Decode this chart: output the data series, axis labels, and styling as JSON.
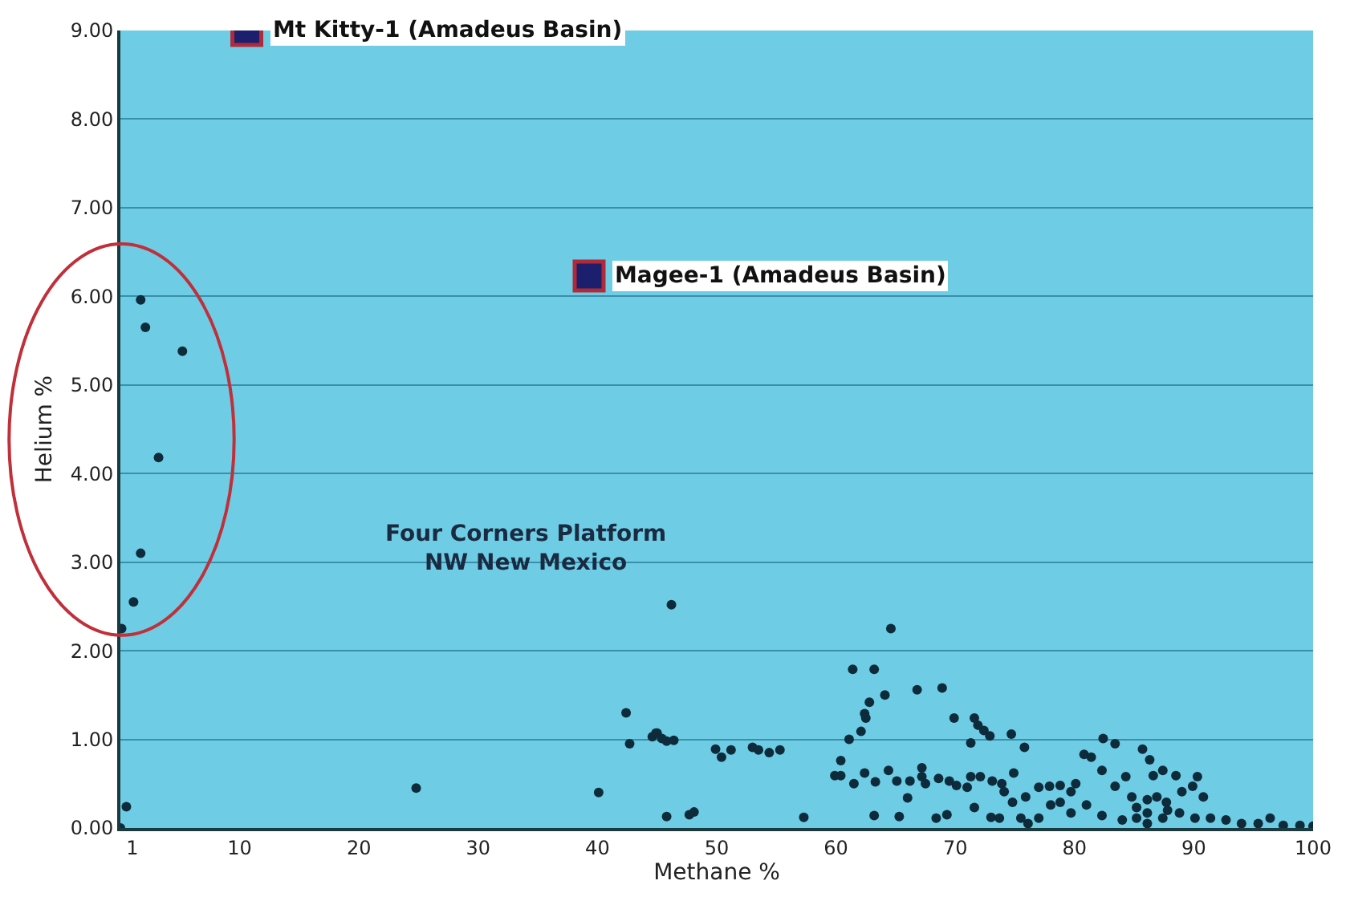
{
  "chart_data": {
    "type": "scatter",
    "xlabel": "Methane %",
    "ylabel": "Helium %",
    "xlim": [
      0,
      100
    ],
    "xticks": [
      {
        "value": 1,
        "label": "1"
      },
      10,
      20,
      30,
      40,
      50,
      60,
      70,
      80,
      90,
      100
    ],
    "ylim": [
      0,
      9
    ],
    "yticks": [
      {
        "value": 0,
        "label": "0.00"
      },
      {
        "value": 1,
        "label": "1.00"
      },
      {
        "value": 2,
        "label": "2.00"
      },
      {
        "value": 3,
        "label": "3.00"
      },
      {
        "value": 4,
        "label": "4.00"
      },
      {
        "value": 5,
        "label": "5.00"
      },
      {
        "value": 6,
        "label": "6.00"
      },
      {
        "value": 7,
        "label": "7.00"
      },
      {
        "value": 8,
        "label": "8.00"
      },
      {
        "value": 9,
        "label": "9.00"
      }
    ],
    "grid": "y",
    "series": [
      {
        "color": "#0d2b3a",
        "marker": "circle",
        "x": [
          0.5,
          0,
          24.8,
          40.1,
          42.4,
          42.7,
          44.6,
          45.0,
          45.8,
          45.8,
          46.2,
          64.6,
          61.4,
          63.2,
          64.1,
          66.8,
          68.9,
          62.8,
          62.4,
          62.5,
          62.1,
          61.1,
          69.9,
          71.6,
          71.9,
          72.4,
          72.9,
          74.7,
          71.3,
          75.8,
          44.9,
          45.4,
          46.4,
          49.9,
          50.4,
          51.2,
          53.0,
          53.5,
          54.4,
          55.3,
          47.7,
          48.1,
          57.3,
          60.4,
          59.9,
          60.4,
          61.5,
          62.4,
          63.3,
          64.4,
          65.1,
          66.0,
          66.2,
          67.2,
          67.2,
          67.5,
          68.6,
          69.5,
          70.1,
          71.0,
          71.3,
          72.1,
          73.1,
          73.9,
          74.1,
          74.9,
          74.8,
          75.9,
          71.6,
          63.2,
          65.3,
          68.4,
          69.3,
          73.0,
          73.7,
          75.5,
          76.1,
          77.0,
          77.9,
          78.8,
          79.7,
          80.1,
          80.8,
          81.4,
          82.4,
          83.4,
          82.3,
          85.7,
          86.3,
          87.4,
          86.6,
          88.5,
          90.3,
          84.3,
          83.4,
          84.8,
          89.0,
          89.9,
          90.8,
          86.1,
          87.7,
          81.0,
          78.8,
          78.0,
          77.0,
          79.7,
          82.3,
          84.0,
          85.2,
          86.1,
          87.4,
          88.8,
          90.1,
          91.4,
          92.7,
          94.0,
          95.4,
          96.4,
          97.5,
          98.9,
          100,
          87.8,
          86.1,
          85.2,
          86.9
        ],
        "values": [
          0.24,
          0,
          0.45,
          0.4,
          1.3,
          0.95,
          1.03,
          1.07,
          0.98,
          0.13,
          2.52,
          2.25,
          1.79,
          1.79,
          1.5,
          1.56,
          1.58,
          1.42,
          1.29,
          1.24,
          1.09,
          1.0,
          1.24,
          1.24,
          1.16,
          1.1,
          1.04,
          1.06,
          0.96,
          0.91,
          1.07,
          1.01,
          0.99,
          0.89,
          0.8,
          0.88,
          0.91,
          0.88,
          0.85,
          0.88,
          0.15,
          0.18,
          0.12,
          0.76,
          0.59,
          0.59,
          0.5,
          0.62,
          0.52,
          0.65,
          0.53,
          0.34,
          0.53,
          0.68,
          0.58,
          0.5,
          0.56,
          0.53,
          0.48,
          0.46,
          0.58,
          0.58,
          0.53,
          0.5,
          0.41,
          0.62,
          0.29,
          0.35,
          0.23,
          0.14,
          0.13,
          0.11,
          0.15,
          0.12,
          0.11,
          0.11,
          0.05,
          0.46,
          0.47,
          0.48,
          0.41,
          0.5,
          0.83,
          0.8,
          1.01,
          0.95,
          0.65,
          0.89,
          0.77,
          0.65,
          0.59,
          0.59,
          0.58,
          0.58,
          0.47,
          0.35,
          0.41,
          0.47,
          0.35,
          0.32,
          0.29,
          0.26,
          0.29,
          0.26,
          0.11,
          0.17,
          0.14,
          0.09,
          0.11,
          0.05,
          0.11,
          0.17,
          0.11,
          0.11,
          0.09,
          0.05,
          0.05,
          0.11,
          0.03,
          0.03,
          0.02,
          0.2,
          0.17,
          0.23,
          0.35
        ]
      },
      {
        "color": "#0d2b3a",
        "marker": "circle",
        "x": [
          1.7,
          2.1,
          5.2,
          3.2,
          1.7,
          1.1,
          0.1
        ],
        "values": [
          5.96,
          5.65,
          5.38,
          4.18,
          3.1,
          2.55,
          2.25
        ]
      },
      {
        "color": "#1c1f6e",
        "marker": "square",
        "x": [
          10.6,
          39.3
        ],
        "values": [
          9.0,
          6.23
        ]
      }
    ],
    "annotations": [
      {
        "text": "Mt Kitty-1 (Amadeus Basin)",
        "x": 10.6,
        "y": 9.0
      },
      {
        "text": "Magee-1 (Amadeus Basin)",
        "x": 39.3,
        "y": 6.23
      },
      "Four Corners Platform\nNW New Mexico"
    ]
  }
}
